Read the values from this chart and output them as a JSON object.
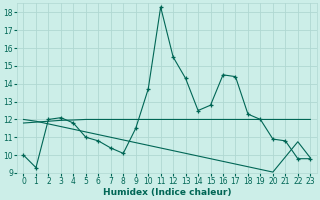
{
  "xlabel": "Humidex (Indice chaleur)",
  "bg_color": "#cceee8",
  "grid_color": "#b0d8d2",
  "line_color": "#006655",
  "xlim": [
    -0.5,
    23.5
  ],
  "ylim": [
    9,
    18.5
  ],
  "yticks": [
    9,
    10,
    11,
    12,
    13,
    14,
    15,
    16,
    17,
    18
  ],
  "xticks": [
    0,
    1,
    2,
    3,
    4,
    5,
    6,
    7,
    8,
    9,
    10,
    11,
    12,
    13,
    14,
    15,
    16,
    17,
    18,
    19,
    20,
    21,
    22,
    23
  ],
  "series1_x": [
    0,
    1,
    2,
    3,
    4,
    5,
    6,
    7,
    8,
    9,
    10,
    11,
    12,
    13,
    14,
    15,
    16,
    17,
    18,
    19,
    20,
    21,
    22,
    23
  ],
  "series1_y": [
    10.0,
    9.3,
    12.0,
    12.1,
    11.8,
    11.0,
    10.8,
    10.4,
    10.1,
    11.5,
    13.7,
    18.3,
    15.5,
    14.3,
    12.5,
    12.8,
    14.5,
    14.4,
    12.3,
    12.0,
    10.9,
    10.8,
    9.8,
    9.8
  ],
  "series2_x": [
    0,
    1,
    2,
    3,
    4,
    5,
    6,
    7,
    8,
    9,
    10,
    11,
    12,
    13,
    14,
    15,
    16,
    17,
    18,
    19,
    20,
    21,
    22,
    23
  ],
  "series2_y": [
    11.8,
    11.85,
    11.9,
    11.95,
    11.97,
    12.0,
    12.0,
    12.0,
    12.0,
    12.0,
    12.0,
    12.0,
    12.0,
    12.0,
    12.0,
    12.0,
    12.0,
    12.0,
    12.0,
    12.0,
    12.0,
    12.0,
    12.0,
    12.0
  ],
  "series3_x": [
    0,
    1,
    2,
    3,
    4,
    5,
    6,
    7,
    8,
    9,
    10,
    11,
    12,
    13,
    14,
    15,
    16,
    17,
    18,
    19,
    20,
    21,
    22,
    23
  ],
  "series3_y": [
    12.0,
    11.9,
    11.75,
    11.6,
    11.45,
    11.3,
    11.15,
    11.0,
    10.85,
    10.7,
    10.55,
    10.4,
    10.25,
    10.1,
    9.95,
    9.8,
    9.65,
    9.5,
    9.35,
    9.2,
    9.05,
    9.9,
    10.75,
    9.85
  ]
}
